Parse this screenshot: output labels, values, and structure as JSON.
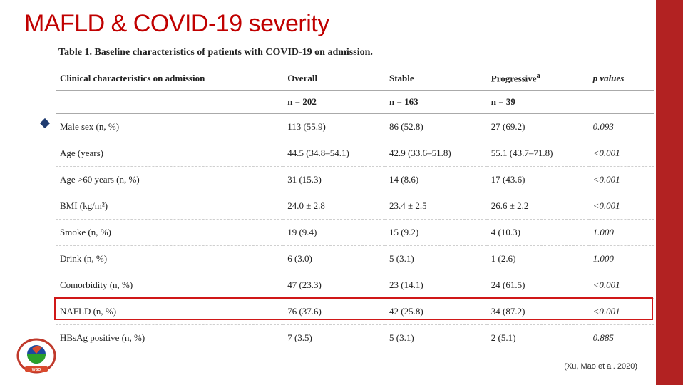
{
  "accent_color": "#b22222",
  "title": "MAFLD & COVID-19 severity",
  "title_color": "#c00000",
  "bullet": {
    "text": "O",
    "diamond_color": "#1f3b70"
  },
  "citation": "(Xu, Mao et al. 2020)",
  "table": {
    "caption": "Table 1. Baseline characteristics of patients with COVID-19 on admission.",
    "columns": [
      "Clinical characteristics on admission",
      "Overall",
      "Stable",
      "Progressive",
      "p values"
    ],
    "prog_sup": "a",
    "n_row": [
      "",
      "n = 202",
      "n = 163",
      "n = 39",
      ""
    ],
    "rows": [
      [
        "Male sex (n, %)",
        "113 (55.9)",
        "86 (52.8)",
        "27 (69.2)",
        "0.093"
      ],
      [
        "Age (years)",
        "44.5 (34.8–54.1)",
        "42.9 (33.6–51.8)",
        "55.1 (43.7–71.8)",
        "<0.001"
      ],
      [
        "Age >60 years (n, %)",
        "31 (15.3)",
        "14 (8.6)",
        "17 (43.6)",
        "<0.001"
      ],
      [
        "BMI (kg/m²)",
        "24.0 ± 2.8",
        "23.4 ± 2.5",
        "26.6 ± 2.2",
        "<0.001"
      ],
      [
        "Smoke (n, %)",
        "19 (9.4)",
        "15 (9.2)",
        "4 (10.3)",
        "1.000"
      ],
      [
        "Drink (n, %)",
        "6 (3.0)",
        "5 (3.1)",
        "1 (2.6)",
        "1.000"
      ],
      [
        "Comorbidity (n, %)",
        "47 (23.3)",
        "23 (14.1)",
        "24 (61.5)",
        "<0.001"
      ],
      [
        "NAFLD (n, %)",
        "76 (37.6)",
        "42 (25.8)",
        "34 (87.2)",
        "<0.001"
      ],
      [
        "HBsAg positive (n, %)",
        "7 (3.5)",
        "5 (3.1)",
        "2 (5.1)",
        "0.885"
      ]
    ],
    "highlight_row_index": 7,
    "highlight_color": "#d01818"
  },
  "logo": {
    "ring_color": "#c0392b",
    "inner_blue": "#1b4aa0",
    "inner_green": "#2aa12a",
    "banner": "#d94a2e"
  }
}
